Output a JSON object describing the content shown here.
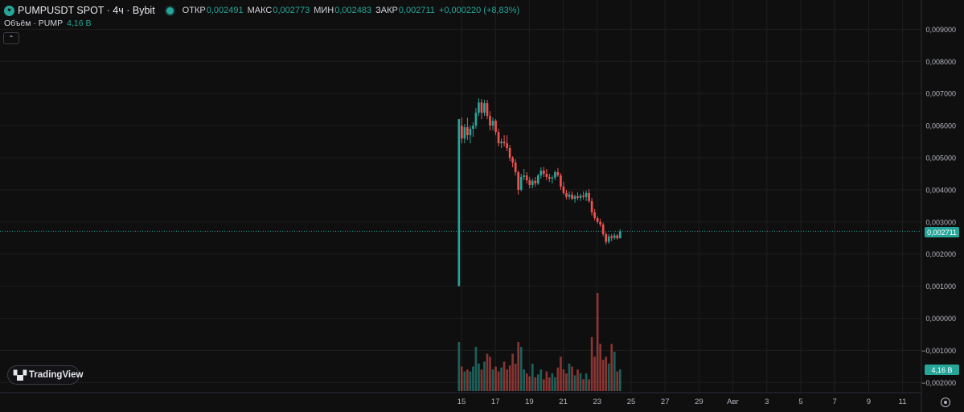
{
  "header": {
    "symbol_title": "PUMPUSDT SPOT · 4ч · Bybit",
    "open_label": "ОТКР",
    "open_value": "0,002491",
    "high_label": "МАКС",
    "high_value": "0,002773",
    "low_label": "МИН",
    "low_value": "0,002483",
    "close_label": "ЗАКР",
    "close_value": "0,002711",
    "change_value": "+0,000220 (+8,83%)"
  },
  "volume_legend": {
    "label": "Объём · PUMP",
    "value": "4,16 B"
  },
  "collapse_glyph": "⌃",
  "branding": {
    "mark": "▚▞",
    "label": "TradingView"
  },
  "price_axis": {
    "ticks": [
      "0,009000",
      "0,008000",
      "0,007000",
      "0,006000",
      "0,005000",
      "0,004000",
      "0,003000",
      "0,002000",
      "0,001000",
      "0,000000",
      "−0,001000",
      "−0,002000"
    ]
  },
  "last_price_label": "0,002711",
  "last_volume_label": "4,16 B",
  "icons": {
    "symbol_logo": "pump-token-icon",
    "status": "market-status-dot",
    "settings": "settings-icon"
  },
  "colors": {
    "up": "#26a69a",
    "down": "#ef5350",
    "background": "#0f0f0f",
    "grid": "#1e1e1e"
  },
  "chart_data": {
    "type": "candlestick",
    "title": "PUMPUSDT SPOT · 4ч · Bybit",
    "interval": "4h",
    "grid": true,
    "ylim": [
      -0.0022,
      0.0092
    ],
    "time_axis_labels": [
      "15",
      "17",
      "19",
      "21",
      "23",
      "25",
      "27",
      "29",
      "Авг",
      "3",
      "5",
      "7",
      "9",
      "11"
    ],
    "day_index_of_first_candle": 14.85,
    "candles_per_day": 6,
    "last_close": 0.002711,
    "candles": [
      {
        "o": 0.001,
        "h": 0.0062,
        "l": 0.001,
        "c": 0.0062
      },
      {
        "o": 0.006,
        "h": 0.00625,
        "l": 0.00545,
        "c": 0.0056
      },
      {
        "o": 0.0056,
        "h": 0.00605,
        "l": 0.00545,
        "c": 0.00595
      },
      {
        "o": 0.00595,
        "h": 0.00625,
        "l": 0.00555,
        "c": 0.0057
      },
      {
        "o": 0.0057,
        "h": 0.006,
        "l": 0.00545,
        "c": 0.0059
      },
      {
        "o": 0.0059,
        "h": 0.0061,
        "l": 0.00565,
        "c": 0.006
      },
      {
        "o": 0.006,
        "h": 0.00655,
        "l": 0.0059,
        "c": 0.0064
      },
      {
        "o": 0.0064,
        "h": 0.00685,
        "l": 0.0063,
        "c": 0.00672
      },
      {
        "o": 0.00672,
        "h": 0.00683,
        "l": 0.0062,
        "c": 0.0064
      },
      {
        "o": 0.0064,
        "h": 0.0068,
        "l": 0.0063,
        "c": 0.0067
      },
      {
        "o": 0.0067,
        "h": 0.0068,
        "l": 0.0062,
        "c": 0.0063
      },
      {
        "o": 0.0063,
        "h": 0.00645,
        "l": 0.00585,
        "c": 0.006
      },
      {
        "o": 0.006,
        "h": 0.00625,
        "l": 0.00585,
        "c": 0.00615
      },
      {
        "o": 0.00615,
        "h": 0.0062,
        "l": 0.0057,
        "c": 0.0058
      },
      {
        "o": 0.0058,
        "h": 0.0059,
        "l": 0.00535,
        "c": 0.00545
      },
      {
        "o": 0.00545,
        "h": 0.0056,
        "l": 0.0053,
        "c": 0.0055
      },
      {
        "o": 0.0055,
        "h": 0.0057,
        "l": 0.00535,
        "c": 0.00545
      },
      {
        "o": 0.00545,
        "h": 0.0057,
        "l": 0.0052,
        "c": 0.0053
      },
      {
        "o": 0.0053,
        "h": 0.0054,
        "l": 0.0049,
        "c": 0.005
      },
      {
        "o": 0.005,
        "h": 0.00505,
        "l": 0.0047,
        "c": 0.00485
      },
      {
        "o": 0.00485,
        "h": 0.00495,
        "l": 0.00445,
        "c": 0.00455
      },
      {
        "o": 0.00455,
        "h": 0.0046,
        "l": 0.00385,
        "c": 0.004
      },
      {
        "o": 0.004,
        "h": 0.0045,
        "l": 0.00395,
        "c": 0.0044
      },
      {
        "o": 0.0044,
        "h": 0.00465,
        "l": 0.0043,
        "c": 0.00445
      },
      {
        "o": 0.00445,
        "h": 0.00455,
        "l": 0.0042,
        "c": 0.0043
      },
      {
        "o": 0.0043,
        "h": 0.0044,
        "l": 0.00405,
        "c": 0.00415
      },
      {
        "o": 0.00415,
        "h": 0.00435,
        "l": 0.00405,
        "c": 0.00428
      },
      {
        "o": 0.00428,
        "h": 0.0044,
        "l": 0.0041,
        "c": 0.0042
      },
      {
        "o": 0.0042,
        "h": 0.0045,
        "l": 0.00415,
        "c": 0.00445
      },
      {
        "o": 0.00445,
        "h": 0.0047,
        "l": 0.00435,
        "c": 0.0046
      },
      {
        "o": 0.0046,
        "h": 0.00472,
        "l": 0.0044,
        "c": 0.0045
      },
      {
        "o": 0.0045,
        "h": 0.00465,
        "l": 0.0043,
        "c": 0.0044
      },
      {
        "o": 0.0044,
        "h": 0.0045,
        "l": 0.00425,
        "c": 0.00435
      },
      {
        "o": 0.00435,
        "h": 0.00445,
        "l": 0.0042,
        "c": 0.00438
      },
      {
        "o": 0.00438,
        "h": 0.0046,
        "l": 0.0043,
        "c": 0.00455
      },
      {
        "o": 0.00455,
        "h": 0.00468,
        "l": 0.0044,
        "c": 0.00445
      },
      {
        "o": 0.00445,
        "h": 0.00452,
        "l": 0.004,
        "c": 0.0041
      },
      {
        "o": 0.0041,
        "h": 0.00425,
        "l": 0.00385,
        "c": 0.0039
      },
      {
        "o": 0.0039,
        "h": 0.004,
        "l": 0.0037,
        "c": 0.00378
      },
      {
        "o": 0.00378,
        "h": 0.00395,
        "l": 0.0037,
        "c": 0.00385
      },
      {
        "o": 0.00385,
        "h": 0.00395,
        "l": 0.00368,
        "c": 0.00372
      },
      {
        "o": 0.00372,
        "h": 0.00385,
        "l": 0.0036,
        "c": 0.0038
      },
      {
        "o": 0.0038,
        "h": 0.00392,
        "l": 0.00368,
        "c": 0.00375
      },
      {
        "o": 0.00375,
        "h": 0.00388,
        "l": 0.00365,
        "c": 0.00382
      },
      {
        "o": 0.00382,
        "h": 0.00395,
        "l": 0.0037,
        "c": 0.00378
      },
      {
        "o": 0.00378,
        "h": 0.00398,
        "l": 0.00365,
        "c": 0.0039
      },
      {
        "o": 0.0039,
        "h": 0.00402,
        "l": 0.0036,
        "c": 0.00365
      },
      {
        "o": 0.00365,
        "h": 0.00375,
        "l": 0.0032,
        "c": 0.0033
      },
      {
        "o": 0.0033,
        "h": 0.0034,
        "l": 0.00305,
        "c": 0.00312
      },
      {
        "o": 0.00312,
        "h": 0.00318,
        "l": 0.00295,
        "c": 0.003
      },
      {
        "o": 0.003,
        "h": 0.0031,
        "l": 0.00285,
        "c": 0.00292
      },
      {
        "o": 0.00292,
        "h": 0.00298,
        "l": 0.00255,
        "c": 0.00262
      },
      {
        "o": 0.00262,
        "h": 0.00268,
        "l": 0.0023,
        "c": 0.00238
      },
      {
        "o": 0.00238,
        "h": 0.00262,
        "l": 0.00232,
        "c": 0.00255
      },
      {
        "o": 0.00255,
        "h": 0.00262,
        "l": 0.0024,
        "c": 0.0025
      },
      {
        "o": 0.0025,
        "h": 0.00265,
        "l": 0.00245,
        "c": 0.00258
      },
      {
        "o": 0.00258,
        "h": 0.00262,
        "l": 0.00245,
        "c": 0.00249
      },
      {
        "o": 0.002491,
        "h": 0.002773,
        "l": 0.002483,
        "c": 0.002711
      }
    ],
    "volume_ratio": [
      0.5,
      0.25,
      0.2,
      0.22,
      0.2,
      0.25,
      0.45,
      0.28,
      0.22,
      0.3,
      0.38,
      0.35,
      0.22,
      0.25,
      0.2,
      0.24,
      0.3,
      0.22,
      0.26,
      0.38,
      0.28,
      0.5,
      0.45,
      0.22,
      0.18,
      0.15,
      0.28,
      0.14,
      0.17,
      0.22,
      0.12,
      0.2,
      0.14,
      0.18,
      0.14,
      0.24,
      0.35,
      0.22,
      0.18,
      0.28,
      0.25,
      0.16,
      0.22,
      0.18,
      0.12,
      0.18,
      0.12,
      0.55,
      0.35,
      1.0,
      0.48,
      0.32,
      0.35,
      0.28,
      0.48,
      0.4,
      0.2,
      0.22
    ]
  }
}
